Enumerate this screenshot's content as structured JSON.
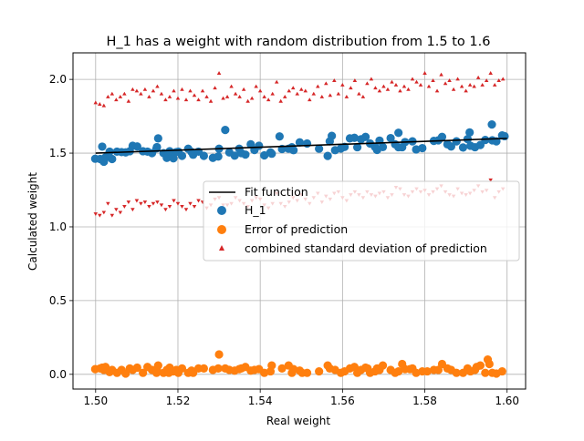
{
  "chart_data": {
    "type": "scatter",
    "title": "H_1 has a weight with random distribution from 1.5 to 1.6",
    "xlabel": "Real weight",
    "ylabel": "Calculated weight",
    "xlim": [
      1.4945,
      1.6045
    ],
    "ylim": [
      -0.1,
      2.18
    ],
    "grid": true,
    "legend_position": "center-right",
    "x_ticks": [
      {
        "value": 1.5,
        "label": "1.50"
      },
      {
        "value": 1.52,
        "label": "1.52"
      },
      {
        "value": 1.54,
        "label": "1.54"
      },
      {
        "value": 1.56,
        "label": "1.56"
      },
      {
        "value": 1.58,
        "label": "1.58"
      },
      {
        "value": 1.6,
        "label": "1.60"
      }
    ],
    "y_ticks": [
      {
        "value": 0.0,
        "label": "0.0"
      },
      {
        "value": 0.5,
        "label": "0.5"
      },
      {
        "value": 1.0,
        "label": "1.0"
      },
      {
        "value": 1.5,
        "label": "1.5"
      },
      {
        "value": 2.0,
        "label": "2.0"
      }
    ],
    "fit_line": {
      "name": "Fit function",
      "color": "#000000",
      "x": [
        1.5,
        1.6
      ],
      "y": [
        1.5,
        1.6
      ]
    },
    "series": [
      {
        "name": "H_1",
        "color": "#1f77b4",
        "marker": "circle",
        "x": [
          1.4999,
          1.5011,
          1.5016,
          1.502,
          1.5021,
          1.5024,
          1.5034,
          1.504,
          1.5052,
          1.5063,
          1.5073,
          1.5083,
          1.509,
          1.5101,
          1.5115,
          1.5126,
          1.5137,
          1.5148,
          1.5149,
          1.5152,
          1.5165,
          1.5173,
          1.5178,
          1.518,
          1.5189,
          1.5196,
          1.5201,
          1.521,
          1.5225,
          1.5233,
          1.5237,
          1.525,
          1.5263,
          1.5285,
          1.5298,
          1.53,
          1.5315,
          1.5325,
          1.5338,
          1.5349,
          1.5354,
          1.5364,
          1.5377,
          1.5386,
          1.5397,
          1.541,
          1.5425,
          1.5428,
          1.5453,
          1.5469,
          1.5477,
          1.5481,
          1.5496,
          1.5514,
          1.5543,
          1.5564,
          1.5569,
          1.5582,
          1.5596,
          1.5605,
          1.5618,
          1.5629,
          1.5636,
          1.5645,
          1.5656,
          1.5667,
          1.5679,
          1.5684,
          1.569,
          1.5698,
          1.5717,
          1.5728,
          1.5736,
          1.5745,
          1.5752,
          1.577,
          1.5779,
          1.5794,
          1.5822,
          1.5833,
          1.5842,
          1.5855,
          1.5864,
          1.5877,
          1.5893,
          1.5904,
          1.5911,
          1.5922,
          1.5935,
          1.5947,
          1.5964,
          1.5974,
          1.5988
        ],
        "y": [
          1.462,
          1.46,
          1.544,
          1.442,
          1.459,
          1.471,
          1.51,
          1.46,
          1.51,
          1.507,
          1.505,
          1.513,
          1.55,
          1.545,
          1.513,
          1.51,
          1.5,
          1.532,
          1.541,
          1.6,
          1.5,
          1.468,
          1.5,
          1.513,
          1.465,
          1.507,
          1.51,
          1.482,
          1.53,
          1.508,
          1.489,
          1.51,
          1.482,
          1.468,
          1.477,
          1.53,
          1.657,
          1.505,
          1.483,
          1.53,
          1.5,
          1.49,
          1.56,
          1.521,
          1.55,
          1.485,
          1.505,
          1.496,
          1.528,
          1.53,
          1.54,
          1.52,
          1.573,
          1.565,
          1.53,
          1.481,
          1.58,
          1.52,
          1.531,
          1.542,
          1.6,
          1.604,
          1.54,
          1.594,
          1.61,
          1.565,
          1.542,
          1.522,
          1.585,
          1.541,
          1.602,
          1.56,
          1.54,
          1.54,
          1.575,
          1.58,
          1.525,
          1.534,
          1.583,
          1.587,
          1.61,
          1.56,
          1.545,
          1.58,
          1.538,
          1.595,
          1.55,
          1.54,
          1.555,
          1.589,
          1.587,
          1.58,
          1.62
        ],
        "y_extra": [
          {
            "x": 1.5447,
            "y": 1.613
          },
          {
            "x": 1.5574,
            "y": 1.617
          },
          {
            "x": 1.5736,
            "y": 1.638
          },
          {
            "x": 1.5909,
            "y": 1.64
          },
          {
            "x": 1.5963,
            "y": 1.694
          },
          {
            "x": 1.5994,
            "y": 1.615
          }
        ]
      },
      {
        "name": "Error of prediction",
        "color": "#ff7f0e",
        "marker": "circle",
        "x": [
          1.4999,
          1.5011,
          1.5016,
          1.502,
          1.5021,
          1.5024,
          1.5034,
          1.504,
          1.5052,
          1.5063,
          1.5073,
          1.5083,
          1.509,
          1.5101,
          1.5115,
          1.5126,
          1.5137,
          1.5148,
          1.5149,
          1.5152,
          1.5165,
          1.5173,
          1.5178,
          1.518,
          1.5189,
          1.5196,
          1.5201,
          1.521,
          1.5225,
          1.5233,
          1.5237,
          1.525,
          1.5263,
          1.5285,
          1.5298,
          1.53,
          1.5315,
          1.5325,
          1.5338,
          1.5349,
          1.5354,
          1.5364,
          1.5377,
          1.5386,
          1.5397,
          1.541,
          1.5425,
          1.5428,
          1.5453,
          1.5469,
          1.5477,
          1.5481,
          1.5496,
          1.5514,
          1.5543,
          1.5564,
          1.5569,
          1.5582,
          1.5596,
          1.5605,
          1.5618,
          1.5629,
          1.5636,
          1.5645,
          1.5656,
          1.5667,
          1.5679,
          1.5684,
          1.569,
          1.5698,
          1.5717,
          1.5728,
          1.5736,
          1.5745,
          1.5752,
          1.577,
          1.5779,
          1.5794,
          1.5822,
          1.5833,
          1.5842,
          1.5855,
          1.5864,
          1.5877,
          1.5893,
          1.5904,
          1.5911,
          1.5922,
          1.5935,
          1.5947,
          1.5964,
          1.5974,
          1.5988
        ],
        "y": [
          0.035,
          0.04,
          0.045,
          0.03,
          0.042,
          0.05,
          0.015,
          0.03,
          0.01,
          0.03,
          0.005,
          0.04,
          0.03,
          0.045,
          0.01,
          0.05,
          0.03,
          0.01,
          0.03,
          0.06,
          0.01,
          0.03,
          0.01,
          0.045,
          0.02,
          0.03,
          0.01,
          0.04,
          0.01,
          0.025,
          0.01,
          0.04,
          0.04,
          0.03,
          0.04,
          0.135,
          0.04,
          0.03,
          0.025,
          0.035,
          0.04,
          0.05,
          0.025,
          0.03,
          0.035,
          0.01,
          0.02,
          0.06,
          0.04,
          0.06,
          0.01,
          0.035,
          0.025,
          0.01,
          0.02,
          0.06,
          0.04,
          0.03,
          0.01,
          0.02,
          0.04,
          0.05,
          0.01,
          0.03,
          0.045,
          0.01,
          0.02,
          0.04,
          0.03,
          0.06,
          0.03,
          0.01,
          0.02,
          0.07,
          0.035,
          0.04,
          0.01,
          0.02,
          0.03,
          0.03,
          0.07,
          0.04,
          0.03,
          0.01,
          0.01,
          0.04,
          0.02,
          0.03,
          0.06,
          0.01,
          0.01,
          0.005,
          0.02
        ],
        "y_extra": [
          {
            "x": 1.5502,
            "y": 0.01
          },
          {
            "x": 1.5661,
            "y": 0.04
          },
          {
            "x": 1.5764,
            "y": 0.035
          },
          {
            "x": 1.5806,
            "y": 0.02
          },
          {
            "x": 1.5926,
            "y": 0.05
          },
          {
            "x": 1.5953,
            "y": 0.1
          },
          {
            "x": 1.5957,
            "y": 0.07
          }
        ]
      },
      {
        "name": "combined standard deviation of prediction",
        "color": "#d62728",
        "marker": "triangle",
        "x": [
          1.5,
          1.501,
          1.502,
          1.503,
          1.504,
          1.505,
          1.506,
          1.507,
          1.508,
          1.509,
          1.51,
          1.511,
          1.512,
          1.513,
          1.514,
          1.515,
          1.516,
          1.517,
          1.518,
          1.519,
          1.52,
          1.521,
          1.522,
          1.523,
          1.524,
          1.525,
          1.526,
          1.527,
          1.528,
          1.529,
          1.53,
          1.531,
          1.532,
          1.533,
          1.534,
          1.535,
          1.536,
          1.537,
          1.538,
          1.539,
          1.54,
          1.541,
          1.542,
          1.543,
          1.544,
          1.545,
          1.546,
          1.547,
          1.548,
          1.549,
          1.55,
          1.551,
          1.552,
          1.553,
          1.554,
          1.555,
          1.556,
          1.557,
          1.558,
          1.559,
          1.56,
          1.561,
          1.562,
          1.563,
          1.564,
          1.565,
          1.566,
          1.567,
          1.568,
          1.569,
          1.57,
          1.571,
          1.572,
          1.573,
          1.574,
          1.575,
          1.576,
          1.577,
          1.578,
          1.579,
          1.58,
          1.581,
          1.582,
          1.583,
          1.584,
          1.585,
          1.586,
          1.587,
          1.588,
          1.589,
          1.59,
          1.591,
          1.592,
          1.593,
          1.594,
          1.595,
          1.596,
          1.597,
          1.598,
          1.599
        ],
        "upper": [
          1.84,
          1.83,
          1.82,
          1.88,
          1.9,
          1.86,
          1.88,
          1.9,
          1.85,
          1.93,
          1.92,
          1.9,
          1.93,
          1.88,
          1.92,
          1.95,
          1.9,
          1.86,
          1.88,
          1.92,
          1.87,
          1.93,
          1.86,
          1.92,
          1.89,
          1.86,
          1.92,
          1.88,
          1.85,
          1.94,
          2.04,
          1.87,
          1.88,
          1.95,
          1.9,
          1.88,
          1.93,
          1.85,
          1.87,
          1.95,
          1.92,
          1.88,
          1.86,
          1.9,
          1.98,
          1.85,
          1.88,
          1.92,
          1.94,
          1.9,
          1.93,
          1.92,
          1.86,
          1.9,
          1.95,
          1.88,
          1.97,
          1.89,
          1.99,
          1.9,
          1.96,
          1.88,
          1.94,
          1.99,
          1.9,
          1.88,
          1.97,
          2.0,
          1.94,
          1.92,
          1.95,
          1.93,
          1.98,
          1.96,
          1.92,
          1.95,
          1.93,
          2.0,
          1.98,
          1.96,
          2.04,
          1.95,
          1.99,
          1.92,
          2.03,
          1.97,
          1.99,
          1.93,
          2.0,
          1.95,
          1.92,
          1.96,
          1.95,
          2.01,
          1.96,
          1.99,
          2.04,
          1.96,
          1.99,
          2.0
        ],
        "lower": [
          1.09,
          1.08,
          1.1,
          1.16,
          1.08,
          1.12,
          1.1,
          1.14,
          1.17,
          1.12,
          1.18,
          1.16,
          1.17,
          1.14,
          1.16,
          1.17,
          1.15,
          1.12,
          1.14,
          1.18,
          1.16,
          1.14,
          1.12,
          1.16,
          1.14,
          1.18,
          1.17,
          1.13,
          1.15,
          1.19,
          1.2,
          1.15,
          1.15,
          1.16,
          1.2,
          1.18,
          1.16,
          1.14,
          1.18,
          1.2,
          1.19,
          1.15,
          1.13,
          1.16,
          1.23,
          1.16,
          1.14,
          1.17,
          1.2,
          1.18,
          1.22,
          1.19,
          1.16,
          1.2,
          1.23,
          1.17,
          1.21,
          1.19,
          1.23,
          1.24,
          1.2,
          1.18,
          1.22,
          1.24,
          1.22,
          1.2,
          1.24,
          1.22,
          1.21,
          1.23,
          1.24,
          1.2,
          1.22,
          1.27,
          1.26,
          1.22,
          1.21,
          1.24,
          1.26,
          1.24,
          1.25,
          1.22,
          1.24,
          1.26,
          1.28,
          1.24,
          1.22,
          1.21,
          1.26,
          1.23,
          1.22,
          1.23,
          1.25,
          1.28,
          1.24,
          1.25,
          1.32,
          1.2,
          1.24,
          1.26
        ]
      }
    ]
  }
}
